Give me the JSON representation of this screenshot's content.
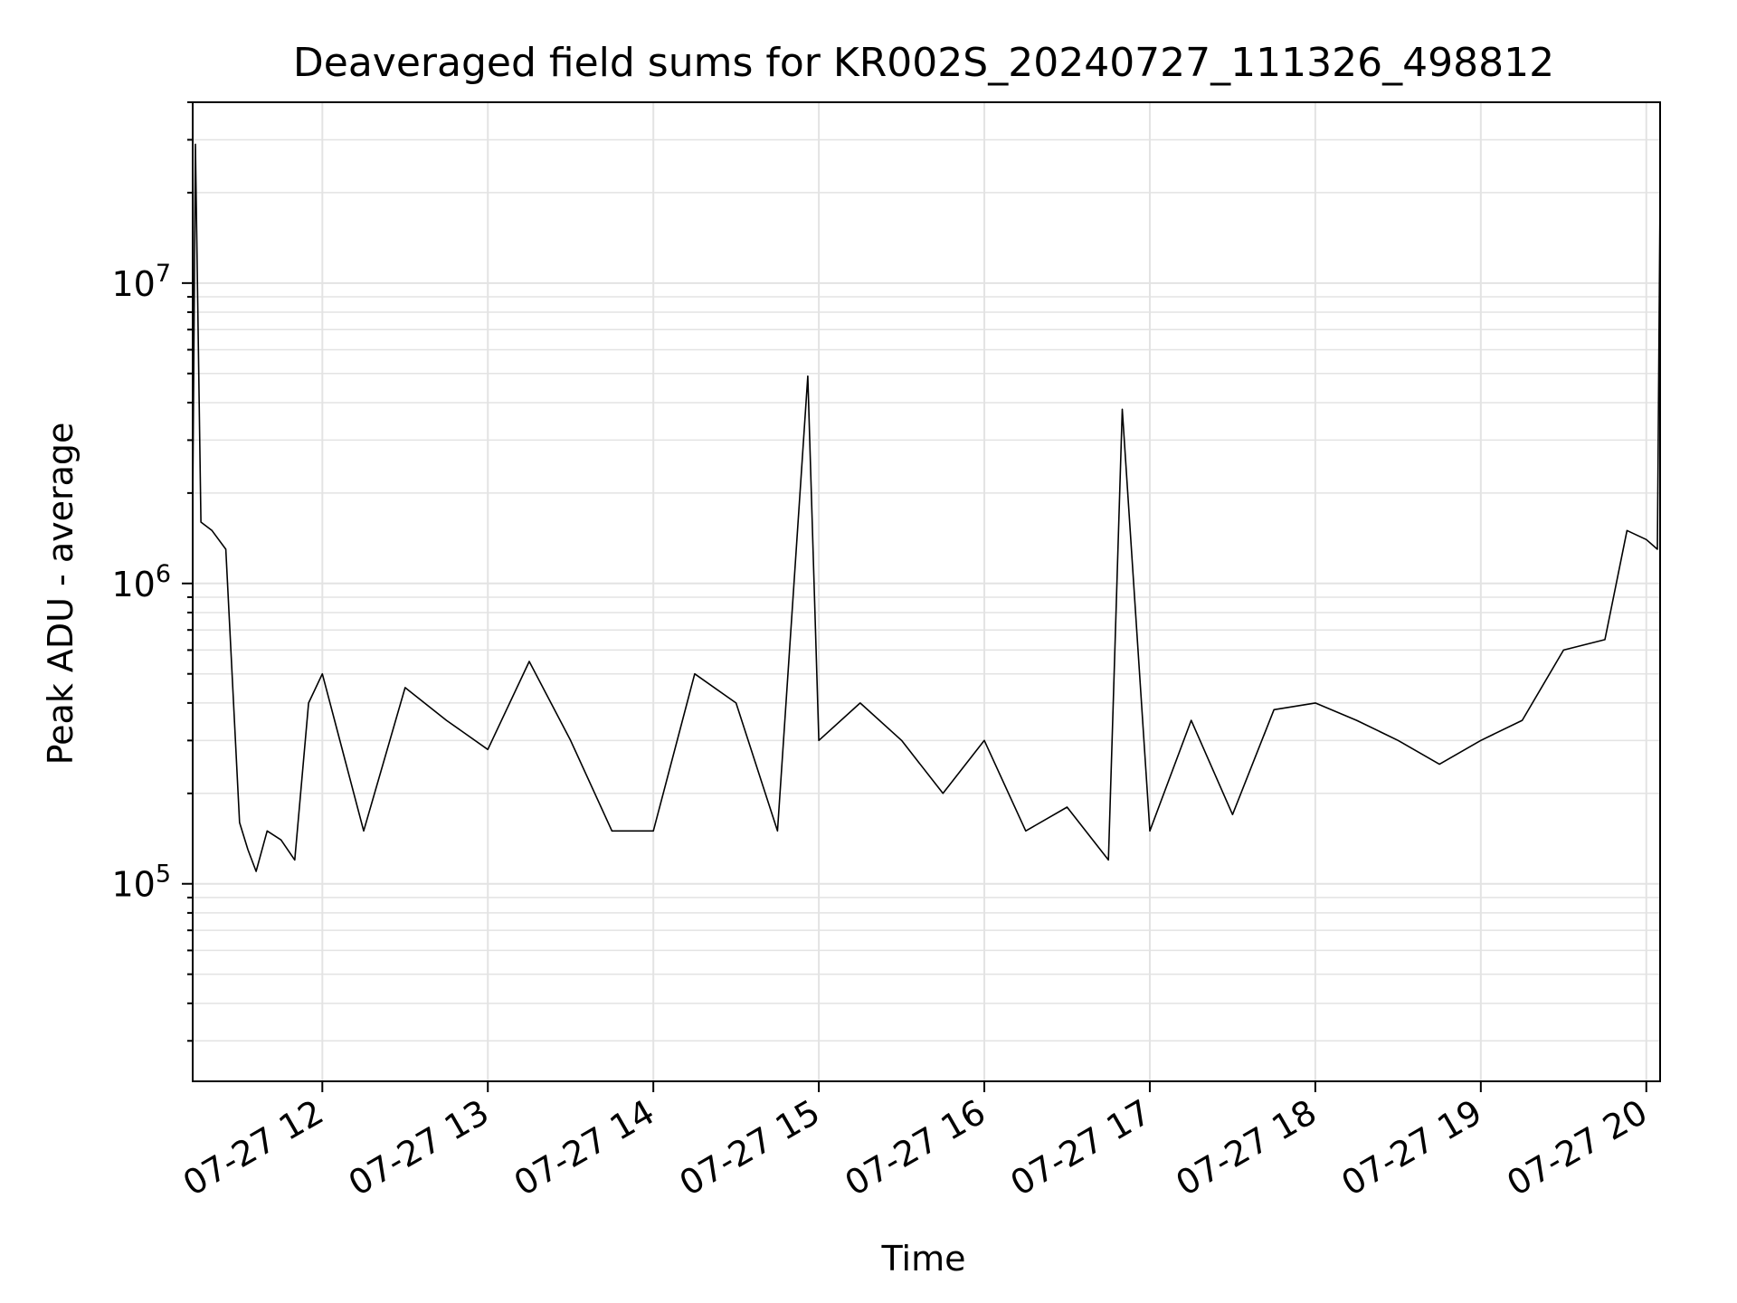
{
  "chart_data": {
    "type": "line",
    "title": "Deaveraged field sums for KR002S_20240727_111326_498812",
    "xlabel": "Time",
    "ylabel": "Peak ADU - average",
    "yscale": "log",
    "ylim": [
      22000,
      40000000
    ],
    "xlim": [
      "2024-07-27 11:13",
      "2024-07-27 20:05"
    ],
    "x_tick_labels": [
      "07-27 12",
      "07-27 13",
      "07-27 14",
      "07-27 15",
      "07-27 16",
      "07-27 17",
      "07-27 18",
      "07-27 19",
      "07-27 20"
    ],
    "y_tick_labels": [
      {
        "base": "10",
        "exp": "5"
      },
      {
        "base": "10",
        "exp": "6"
      },
      {
        "base": "10",
        "exp": "7"
      }
    ],
    "grid": true,
    "line_color": "#000000",
    "series": [
      {
        "x": [
          "2024-07-27 11:13",
          "2024-07-27 11:14",
          "2024-07-27 11:16",
          "2024-07-27 11:20",
          "2024-07-27 11:25",
          "2024-07-27 11:30",
          "2024-07-27 11:33",
          "2024-07-27 11:36",
          "2024-07-27 11:40",
          "2024-07-27 11:45",
          "2024-07-27 11:50",
          "2024-07-27 11:55",
          "2024-07-27 12:00",
          "2024-07-27 12:15",
          "2024-07-27 12:30",
          "2024-07-27 12:45",
          "2024-07-27 13:00",
          "2024-07-27 13:15",
          "2024-07-27 13:30",
          "2024-07-27 13:45",
          "2024-07-27 14:00",
          "2024-07-27 14:15",
          "2024-07-27 14:30",
          "2024-07-27 14:45",
          "2024-07-27 14:56",
          "2024-07-27 15:00",
          "2024-07-27 15:15",
          "2024-07-27 15:30",
          "2024-07-27 15:45",
          "2024-07-27 16:00",
          "2024-07-27 16:15",
          "2024-07-27 16:30",
          "2024-07-27 16:45",
          "2024-07-27 16:50",
          "2024-07-27 17:00",
          "2024-07-27 17:15",
          "2024-07-27 17:30",
          "2024-07-27 17:45",
          "2024-07-27 18:00",
          "2024-07-27 18:15",
          "2024-07-27 18:30",
          "2024-07-27 18:45",
          "2024-07-27 19:00",
          "2024-07-27 19:15",
          "2024-07-27 19:30",
          "2024-07-27 19:45",
          "2024-07-27 19:53",
          "2024-07-27 20:00",
          "2024-07-27 20:04",
          "2024-07-27 20:05"
        ],
        "y": [
          1800000,
          29000000,
          1600000,
          1500000,
          1300000,
          160000,
          130000,
          110000,
          150000,
          140000,
          120000,
          400000,
          500000,
          150000,
          450000,
          350000,
          280000,
          550000,
          300000,
          150000,
          150000,
          500000,
          400000,
          150000,
          4900000,
          300000,
          400000,
          300000,
          200000,
          300000,
          150000,
          180000,
          120000,
          3800000,
          150000,
          350000,
          170000,
          380000,
          400000,
          350000,
          300000,
          250000,
          300000,
          350000,
          600000,
          650000,
          1500000,
          1400000,
          1300000,
          20000000
        ]
      }
    ]
  }
}
